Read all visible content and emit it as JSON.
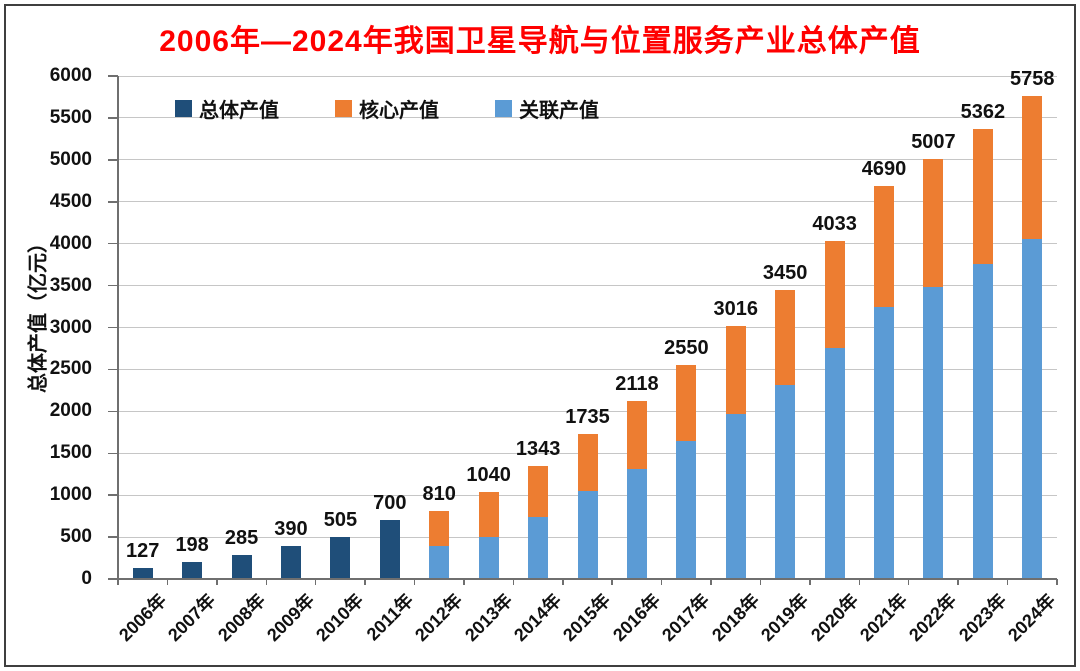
{
  "frame": {
    "border_color": "#3f3f3f",
    "background": "#ffffff"
  },
  "chart_data": {
    "type": "bar",
    "stacked": true,
    "title": "2006年—2024年我国卫星导航与位置服务产业总体产值",
    "title_color": "#ff0000",
    "xlabel": "",
    "ylabel": "总体产值（亿元）",
    "ylim": [
      0,
      6000
    ],
    "yticks": [
      0,
      500,
      1000,
      1500,
      2000,
      2500,
      3000,
      3500,
      4000,
      4500,
      5000,
      5500,
      6000
    ],
    "grid": true,
    "legend_position": "top-left-inside",
    "categories": [
      "2006年",
      "2007年",
      "2008年",
      "2009年",
      "2010年",
      "2011年",
      "2012年",
      "2013年",
      "2014年",
      "2015年",
      "2016年",
      "2017年",
      "2018年",
      "2019年",
      "2020年",
      "2021年",
      "2022年",
      "2023年",
      "2024年"
    ],
    "series": [
      {
        "name": "总体产值",
        "color": "#1f4e79",
        "values": [
          127,
          198,
          285,
          390,
          505,
          700,
          null,
          null,
          null,
          null,
          null,
          null,
          null,
          null,
          null,
          null,
          null,
          null,
          null
        ]
      },
      {
        "name": "核心产值",
        "color": "#ed7d31",
        "values": [
          null,
          null,
          null,
          null,
          null,
          null,
          420,
          540,
          598,
          685,
          808,
          900,
          1046,
          1140,
          1273,
          1440,
          1527,
          1602,
          1698
        ]
      },
      {
        "name": "关联产值",
        "color": "#5b9bd5",
        "values": [
          null,
          null,
          null,
          null,
          null,
          null,
          390,
          500,
          745,
          1050,
          1310,
          1650,
          1970,
          2310,
          2760,
          3250,
          3480,
          3760,
          4060
        ]
      }
    ],
    "total_labels": [
      "127",
      "198",
      "285",
      "390",
      "505",
      "700",
      "810",
      "1040",
      "1343",
      "1735",
      "2118",
      "2550",
      "3016",
      "3450",
      "4033",
      "4690",
      "5007",
      "5362",
      "5758"
    ]
  }
}
